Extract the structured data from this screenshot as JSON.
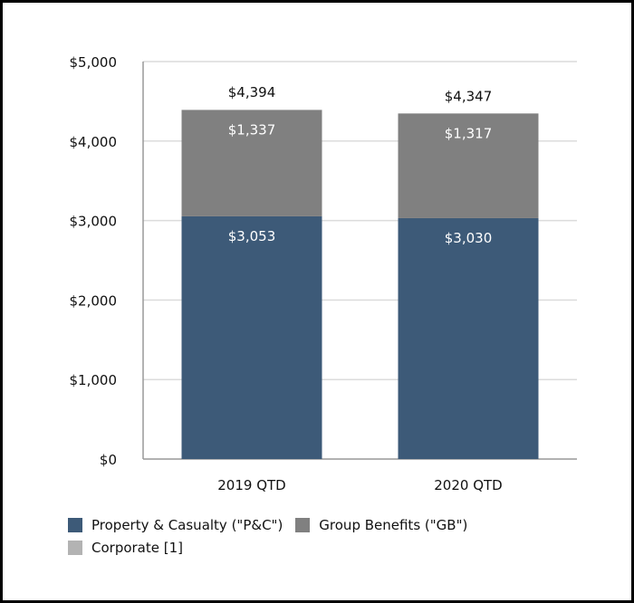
{
  "chart_data": {
    "type": "bar",
    "stacked": true,
    "categories": [
      "2019 QTD",
      "2020 QTD"
    ],
    "series": [
      {
        "name": "Property & Casualty (\"P&C\")",
        "values": [
          3053,
          3030
        ],
        "labels": [
          "$3,053",
          "$3,030"
        ],
        "color": "#3d5a78"
      },
      {
        "name": "Group Benefits (\"GB\")",
        "values": [
          1337,
          1317
        ],
        "labels": [
          "$1,337",
          "$1,317"
        ],
        "color": "#808080"
      },
      {
        "name": "Corporate [1]",
        "values": [
          4,
          0
        ],
        "labels": [
          "",
          ""
        ],
        "color": "#b3b3b3"
      }
    ],
    "totals": [
      "$4,394",
      "$4,347"
    ],
    "total_values": [
      4394,
      4347
    ],
    "ylim": [
      0,
      5000
    ],
    "yticks": [
      0,
      1000,
      2000,
      3000,
      4000,
      5000
    ],
    "ytick_labels": [
      "$0",
      "$1,000",
      "$2,000",
      "$3,000",
      "$4,000",
      "$5,000"
    ],
    "grid": true,
    "legend_position": "bottom-left",
    "title": "",
    "xlabel": "",
    "ylabel": ""
  }
}
